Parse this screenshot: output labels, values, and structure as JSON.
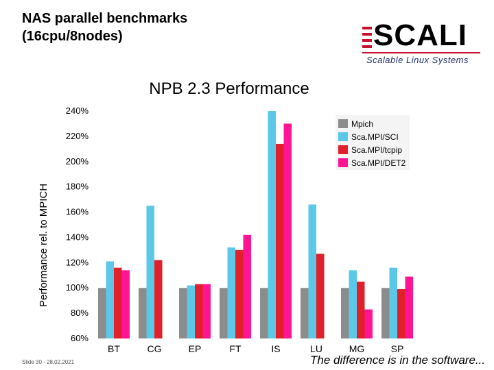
{
  "slide": {
    "title_line1": "NAS parallel benchmarks",
    "title_line2": "(16cpu/8nodes)",
    "footer_left": "Slide 30 - 28.02.2021",
    "footer_right": "The difference is in the software..."
  },
  "logo": {
    "word": "SCALI",
    "tagline": "Scalable Linux Systems",
    "accent": "#c8102e",
    "tagline_color": "#1d2e6e"
  },
  "chart_data": {
    "type": "bar",
    "title": "NPB 2.3 Performance",
    "ylabel": "Performance rel. to MPICH",
    "ylim": [
      60,
      240
    ],
    "ytick_step": 20,
    "ytick_suffix": "%",
    "categories": [
      "BT",
      "CG",
      "EP",
      "FT",
      "IS",
      "LU",
      "MG",
      "SP"
    ],
    "series": [
      {
        "name": "Mpich",
        "color": "#8c8c8c",
        "values": [
          100,
          100,
          100,
          100,
          100,
          100,
          100,
          100
        ]
      },
      {
        "name": "Sca.MPI/SCI",
        "color": "#5bc8e8",
        "values": [
          121,
          165,
          102,
          132,
          240,
          166,
          114,
          116
        ]
      },
      {
        "name": "Sca.MPI/tcpip",
        "color": "#e0202a",
        "values": [
          116,
          122,
          103,
          130,
          214,
          127,
          105,
          99
        ]
      },
      {
        "name": "Sca.MPI/DET2",
        "color": "#ff1493",
        "values": [
          114,
          null,
          103,
          142,
          230,
          null,
          83,
          109
        ]
      }
    ],
    "legend_position": "top-right"
  }
}
